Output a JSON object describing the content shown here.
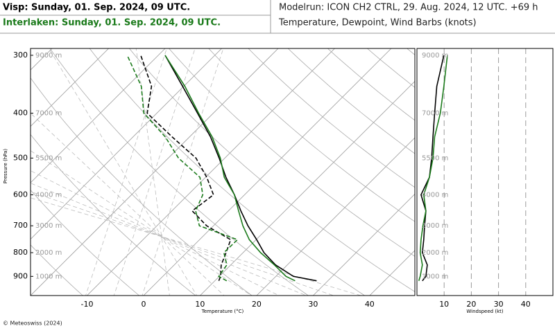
{
  "header": {
    "title_left_1": "Visp: Sunday, 01. Sep. 2024, 09 UTC.",
    "title_left_2": "Interlaken: Sunday, 01. Sep. 2024, 09 UTC.",
    "title_right_1": "Modelrun: ICON CH2 CTRL, 29. Aug. 2024, 12 UTC. +69 h",
    "title_right_2": "Temperature, Dewpoint, Wind Barbs (knots)"
  },
  "footer": "© Meteoswiss (2024)",
  "chart_data": [
    {
      "type": "skewt",
      "x_label": "Temperature (°C)",
      "y_label": "Pressure (hPa)",
      "y": [
        920,
        900,
        850,
        800,
        750,
        700,
        650,
        600,
        550,
        500,
        450,
        400,
        350,
        300
      ],
      "series": [
        {
          "color": "#000000",
          "dash": false,
          "values": [
            28,
            23.1,
            17.9,
            13.7,
            10.1,
            6.1,
            2.2,
            -1.8,
            -6.4,
            -11,
            -16.3,
            -22.8,
            -30.2,
            -38.8
          ]
        },
        {
          "color": "#000000",
          "dash": true,
          "values": [
            10.7,
            10.2,
            8.3,
            7,
            5.5,
            -1.2,
            -6.4,
            -5.5,
            -9.8,
            -15.1,
            -23.1,
            -31.7,
            -35.7,
            -43.1
          ]
        },
        {
          "color": "#1a7a1a",
          "dash": false,
          "values": [
            24.2,
            21.8,
            17.7,
            13.1,
            8.8,
            5.2,
            1.8,
            -1.8,
            -6.7,
            -10.8,
            -16,
            -22.6,
            -29.8,
            -38.8
          ]
        },
        {
          "color": "#1a7a1a",
          "dash": true,
          "values": [
            12.1,
            9.9,
            9.3,
            6.6,
            6.7,
            -2.5,
            -5.8,
            -7.4,
            -11,
            -18.2,
            -24.3,
            -32.3,
            -37.5,
            -45.5
          ]
        }
      ],
      "xlim": [
        -20,
        48
      ],
      "xticks": [
        -10,
        0,
        10,
        20,
        30,
        40
      ],
      "ylim": [
        990,
        290
      ],
      "y_log": true,
      "yticks": [
        300,
        400,
        500,
        600,
        700,
        800,
        900
      ],
      "height_ticks": [
        {
          "value": 300,
          "label": "9000 m"
        },
        {
          "value": 400,
          "label": "7000 m"
        },
        {
          "value": 500,
          "label": "5500 m"
        },
        {
          "value": 600,
          "label": "4000 m"
        },
        {
          "value": 700,
          "label": "3000 m"
        },
        {
          "value": 800,
          "label": "2000 m"
        },
        {
          "value": 900,
          "label": "1000 m"
        }
      ]
    },
    {
      "type": "windprofile",
      "x_label": "Windspeed (kt)",
      "y": [
        920,
        900,
        850,
        800,
        750,
        700,
        650,
        600,
        550,
        500,
        450,
        400,
        350,
        300
      ],
      "series": [
        {
          "color": "#000000",
          "values": [
            2,
            3.3,
            3.8,
            2,
            2.5,
            2.8,
            3.3,
            1.5,
            4.6,
            5.4,
            5.9,
            6.5,
            7.3,
            9.9
          ]
        },
        {
          "color": "#1a7a1a",
          "values": [
            0.7,
            1.2,
            2,
            1.2,
            1.5,
            2.2,
            3.3,
            2.5,
            4.6,
            5.9,
            6.5,
            8.6,
            9.9,
            11.2
          ]
        }
      ],
      "xlim": [
        0,
        50
      ],
      "xticks": [
        10,
        20,
        30,
        40
      ],
      "ylim": [
        990,
        290
      ],
      "y_log": true
    }
  ]
}
